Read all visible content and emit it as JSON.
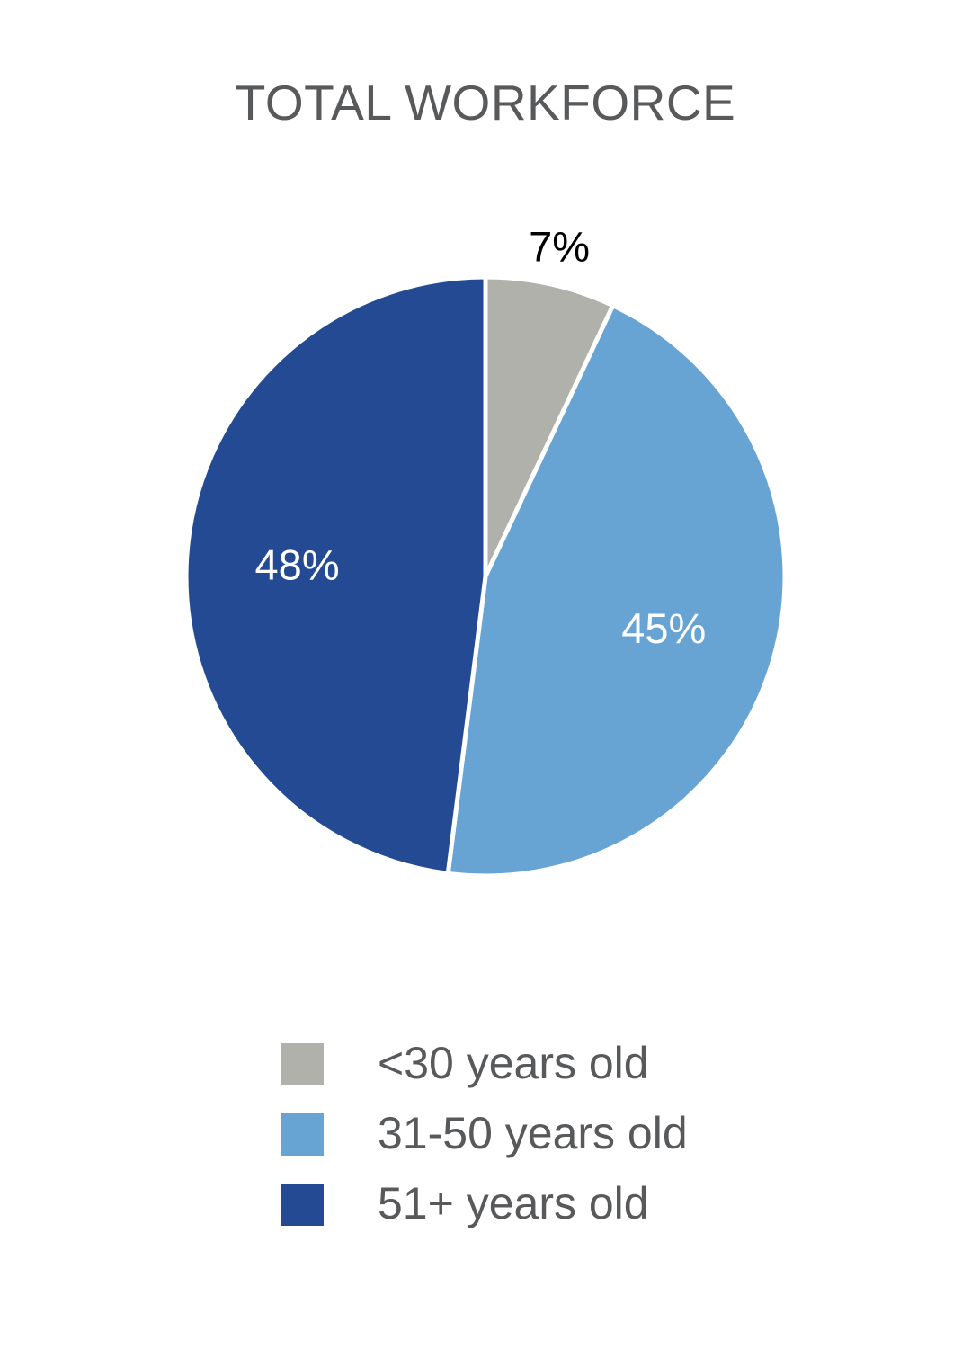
{
  "chart_data": {
    "type": "pie",
    "title": "TOTAL WORKFORCE",
    "slices": [
      {
        "label": "<30 years old",
        "value": 7,
        "display": "7%",
        "color": "#b1b1ac",
        "label_color": "#000000"
      },
      {
        "label": "31-50 years old",
        "value": 45,
        "display": "45%",
        "color": "#67a3d3",
        "label_color": "#ffffff"
      },
      {
        "label": "51+ years old",
        "value": 48,
        "display": "48%",
        "color": "#234a92",
        "label_color": "#ffffff"
      }
    ],
    "legend_position": "bottom"
  }
}
